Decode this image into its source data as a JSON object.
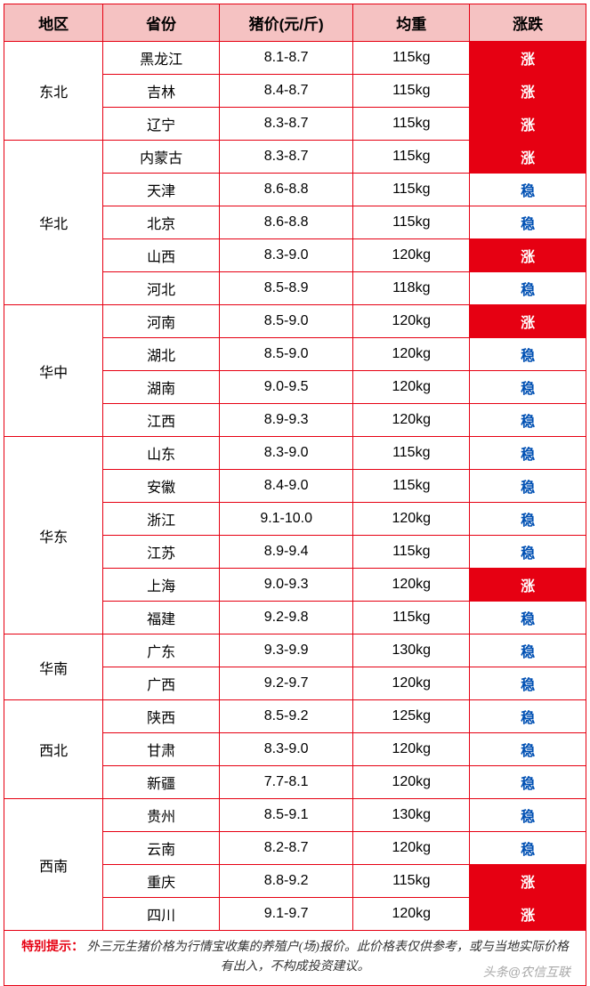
{
  "columns": [
    "地区",
    "省份",
    "猪价(元/斤)",
    "均重",
    "涨跌"
  ],
  "trend_labels": {
    "up": "涨",
    "stable": "稳"
  },
  "trend_styles": {
    "up": {
      "bg": "#e60012",
      "fg": "#ffffff"
    },
    "stable": {
      "bg": "#ffffff",
      "fg": "#0050b3"
    }
  },
  "header_style": {
    "bg": "#f5c2c2",
    "fg": "#000000",
    "border": "#e60012",
    "fontsize_pt": 13
  },
  "cell_style": {
    "bg": "#ffffff",
    "fg": "#000000",
    "border": "#e60012",
    "fontsize_pt": 12
  },
  "regions": [
    {
      "name": "东北",
      "rows": [
        {
          "province": "黑龙江",
          "price": "8.1-8.7",
          "weight": "115kg",
          "trend": "up"
        },
        {
          "province": "吉林",
          "price": "8.4-8.7",
          "weight": "115kg",
          "trend": "up"
        },
        {
          "province": "辽宁",
          "price": "8.3-8.7",
          "weight": "115kg",
          "trend": "up"
        }
      ]
    },
    {
      "name": "华北",
      "rows": [
        {
          "province": "内蒙古",
          "price": "8.3-8.7",
          "weight": "115kg",
          "trend": "up"
        },
        {
          "province": "天津",
          "price": "8.6-8.8",
          "weight": "115kg",
          "trend": "stable"
        },
        {
          "province": "北京",
          "price": "8.6-8.8",
          "weight": "115kg",
          "trend": "stable"
        },
        {
          "province": "山西",
          "price": "8.3-9.0",
          "weight": "120kg",
          "trend": "up"
        },
        {
          "province": "河北",
          "price": "8.5-8.9",
          "weight": "118kg",
          "trend": "stable"
        }
      ]
    },
    {
      "name": "华中",
      "rows": [
        {
          "province": "河南",
          "price": "8.5-9.0",
          "weight": "120kg",
          "trend": "up"
        },
        {
          "province": "湖北",
          "price": "8.5-9.0",
          "weight": "120kg",
          "trend": "stable"
        },
        {
          "province": "湖南",
          "price": "9.0-9.5",
          "weight": "120kg",
          "trend": "stable"
        },
        {
          "province": "江西",
          "price": "8.9-9.3",
          "weight": "120kg",
          "trend": "stable"
        }
      ]
    },
    {
      "name": "华东",
      "rows": [
        {
          "province": "山东",
          "price": "8.3-9.0",
          "weight": "115kg",
          "trend": "stable"
        },
        {
          "province": "安徽",
          "price": "8.4-9.0",
          "weight": "115kg",
          "trend": "stable"
        },
        {
          "province": "浙江",
          "price": "9.1-10.0",
          "weight": "120kg",
          "trend": "stable"
        },
        {
          "province": "江苏",
          "price": "8.9-9.4",
          "weight": "115kg",
          "trend": "stable"
        },
        {
          "province": "上海",
          "price": "9.0-9.3",
          "weight": "120kg",
          "trend": "up"
        },
        {
          "province": "福建",
          "price": "9.2-9.8",
          "weight": "115kg",
          "trend": "stable"
        }
      ]
    },
    {
      "name": "华南",
      "rows": [
        {
          "province": "广东",
          "price": "9.3-9.9",
          "weight": "130kg",
          "trend": "stable"
        },
        {
          "province": "广西",
          "price": "9.2-9.7",
          "weight": "120kg",
          "trend": "stable"
        }
      ]
    },
    {
      "name": "西北",
      "rows": [
        {
          "province": "陕西",
          "price": "8.5-9.2",
          "weight": "125kg",
          "trend": "stable"
        },
        {
          "province": "甘肃",
          "price": "8.3-9.0",
          "weight": "120kg",
          "trend": "stable"
        },
        {
          "province": "新疆",
          "price": "7.7-8.1",
          "weight": "120kg",
          "trend": "stable"
        }
      ]
    },
    {
      "name": "西南",
      "rows": [
        {
          "province": "贵州",
          "price": "8.5-9.1",
          "weight": "130kg",
          "trend": "stable"
        },
        {
          "province": "云南",
          "price": "8.2-8.7",
          "weight": "120kg",
          "trend": "stable"
        },
        {
          "province": "重庆",
          "price": "8.8-9.2",
          "weight": "115kg",
          "trend": "up"
        },
        {
          "province": "四川",
          "price": "9.1-9.7",
          "weight": "120kg",
          "trend": "up"
        }
      ]
    }
  ],
  "footer": {
    "label": "特别提示：",
    "text": "外三元生猪价格为行情宝收集的养殖户(场)报价。此价格表仅供参考，或与当地实际价格有出入，不构成投资建议。"
  },
  "watermark": "头条@农信互联"
}
